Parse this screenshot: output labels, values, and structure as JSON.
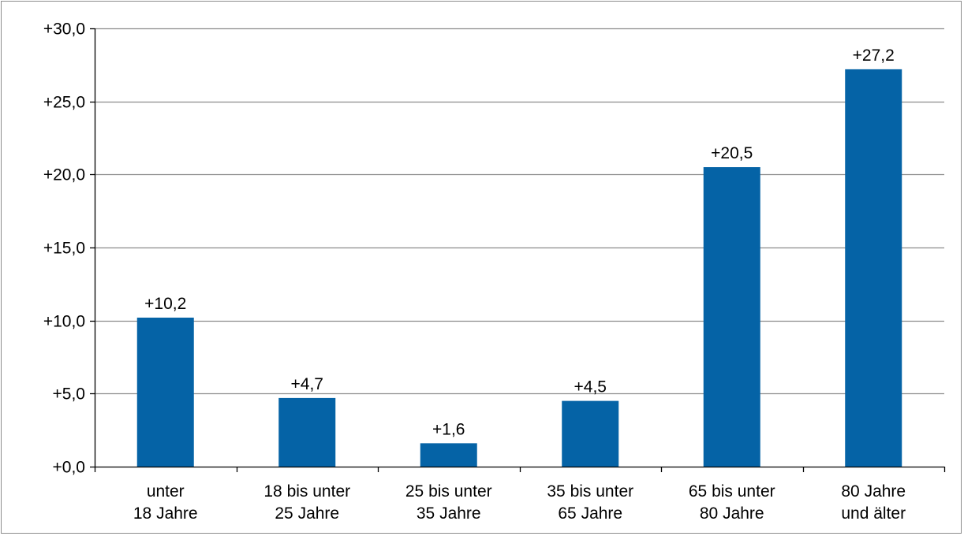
{
  "chart_data": {
    "type": "bar",
    "title": "",
    "xlabel": "",
    "ylabel": "",
    "categories": [
      [
        "unter",
        "18 Jahre"
      ],
      [
        "18 bis unter",
        "25 Jahre"
      ],
      [
        "25 bis unter",
        "35 Jahre"
      ],
      [
        "35 bis unter",
        "65 Jahre"
      ],
      [
        "65 bis unter",
        "80 Jahre"
      ],
      [
        "80 Jahre",
        "und älter"
      ]
    ],
    "values": [
      10.2,
      4.7,
      1.6,
      4.5,
      20.5,
      27.2
    ],
    "data_labels": [
      "+10,2",
      "+4,7",
      "+1,6",
      "+4,5",
      "+20,5",
      "+27,2"
    ],
    "ylim": [
      0,
      30
    ],
    "yticks": [
      0,
      5,
      10,
      15,
      20,
      25,
      30
    ],
    "ytick_labels": [
      "+0,0",
      "+5,0",
      "+10,0",
      "+15,0",
      "+20,0",
      "+25,0",
      "+30,0"
    ],
    "grid": true,
    "legend": "none",
    "colors": {
      "bar": "#0563a6",
      "grid": "#8c8c8c",
      "axis": "#000000"
    }
  }
}
